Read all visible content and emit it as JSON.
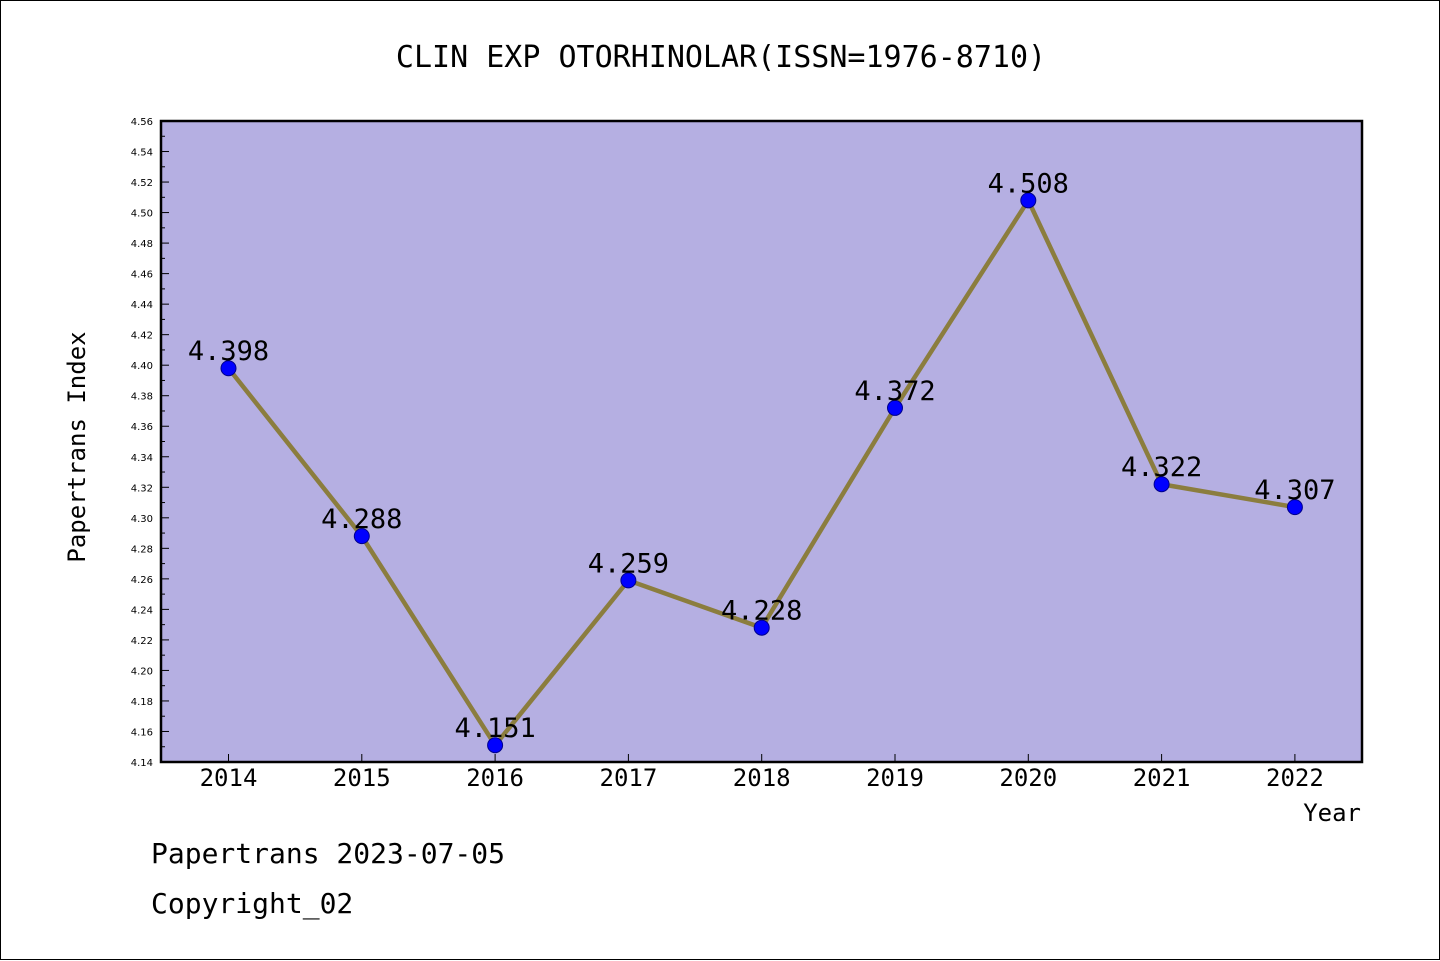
{
  "chart_data": {
    "type": "line",
    "title": "CLIN EXP OTORHINOLAR(ISSN=1976-8710)",
    "xlabel": "Year",
    "ylabel": "Papertrans Index",
    "categories": [
      "2014",
      "2015",
      "2016",
      "2017",
      "2018",
      "2019",
      "2020",
      "2021",
      "2022"
    ],
    "series": [
      {
        "values": [
          4.398,
          4.288,
          4.151,
          4.259,
          4.228,
          4.372,
          4.508,
          4.322,
          4.307
        ],
        "data_labels": [
          "4.398",
          "4.288",
          "4.151",
          "4.259",
          "4.228",
          "4.372",
          "4.508",
          "4.322",
          "4.307"
        ]
      }
    ],
    "ylim": [
      4.14,
      4.56
    ],
    "y_ticks": [
      "4.14",
      "4.16",
      "4.18",
      "4.20",
      "4.22",
      "4.24",
      "4.26",
      "4.28",
      "4.30",
      "4.32",
      "4.34",
      "4.36",
      "4.38",
      "4.40",
      "4.42",
      "4.44",
      "4.46",
      "4.48",
      "4.50",
      "4.52",
      "4.54",
      "4.56"
    ],
    "grid": false,
    "legend": "none",
    "colors": {
      "plot_background": "#b5afe2",
      "line": "#8b7d3e",
      "marker": "#0000ff",
      "axis": "#000000"
    }
  },
  "footer": {
    "line1": "Papertrans 2023-07-05",
    "line2": "Copyright_02"
  }
}
